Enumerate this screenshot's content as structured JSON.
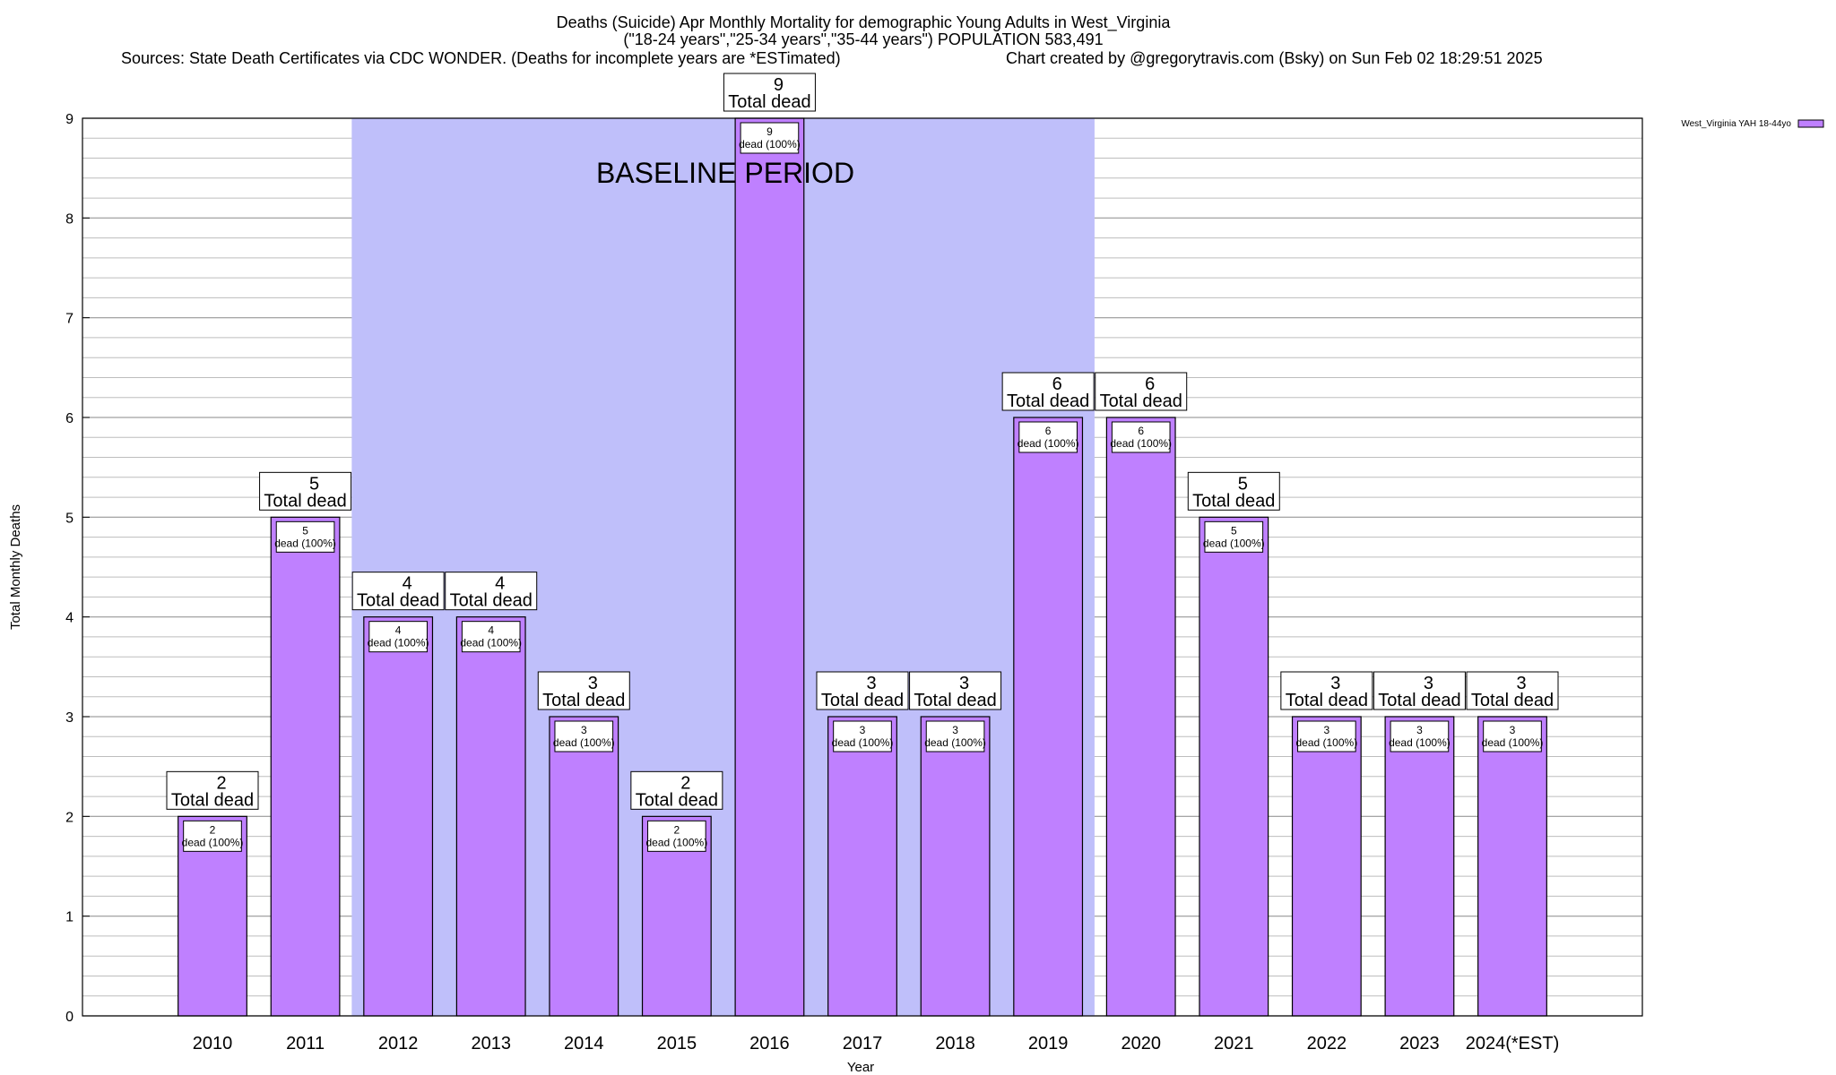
{
  "header": {
    "title_line1": "Deaths (Suicide) Apr Monthly Mortality for demographic Young Adults in West_Virginia",
    "title_line2": "(\"18-24 years\",\"25-34 years\",\"35-44 years\") POPULATION 583,491",
    "sources": "Sources: State Death Certificates via CDC WONDER. (Deaths for incomplete years are *ESTimated)",
    "credit": "Chart created by @gregorytravis.com (Bsky) on Sun Feb 02 18:29:51 2025"
  },
  "chart_data": {
    "type": "bar",
    "title": "Deaths (Suicide) Apr Monthly Mortality for demographic Young Adults in West_Virginia",
    "xlabel": "Year",
    "ylabel": "Total Monthly Deaths",
    "ylim": [
      0,
      9
    ],
    "yticks": [
      0,
      1,
      2,
      3,
      4,
      5,
      6,
      7,
      8,
      9
    ],
    "grid": true,
    "legend_position": "top-right",
    "categories": [
      "2010",
      "2011",
      "2012",
      "2013",
      "2014",
      "2015",
      "2016",
      "2017",
      "2018",
      "2019",
      "2020",
      "2021",
      "2022",
      "2023",
      "2024(*EST)"
    ],
    "series": [
      {
        "name": "West_Virginia YAH 18-44yo",
        "color": "#bf80ff",
        "values": [
          2,
          5,
          4,
          4,
          3,
          2,
          9,
          3,
          3,
          6,
          6,
          5,
          3,
          3,
          3
        ]
      }
    ],
    "bar_label_top": "Total dead",
    "bar_label_inner": "dead (100%)",
    "baseline": {
      "label": "BASELINE PERIOD",
      "start": "2012",
      "end": "2019",
      "color": "#bfbffa"
    }
  }
}
